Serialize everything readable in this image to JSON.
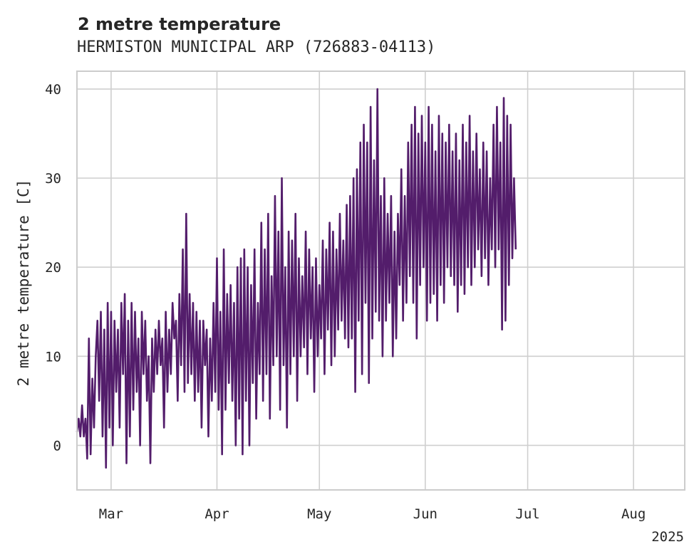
{
  "chart_data": {
    "type": "line",
    "title": "2 metre temperature",
    "subtitle": "HERMISTON MUNICIPAL ARP (726883-04113)",
    "xlabel": "",
    "ylabel": "2 metre temperature [C]",
    "x_range": [
      "2025-02-19",
      "2025-08-16"
    ],
    "ylim": [
      -5,
      42
    ],
    "y_ticks": [
      0,
      10,
      20,
      30,
      40
    ],
    "x_ticks": [
      {
        "date": "2025-03-01",
        "label": "Mar"
      },
      {
        "date": "2025-04-01",
        "label": "Apr"
      },
      {
        "date": "2025-05-01",
        "label": "May"
      },
      {
        "date": "2025-06-01",
        "label": "Jun"
      },
      {
        "date": "2025-07-01",
        "label": "Jul"
      },
      {
        "date": "2025-08-01",
        "label": "Aug"
      }
    ],
    "year_label": "2025",
    "grid": true,
    "series": [
      {
        "color": "#531d6b",
        "x_start": "2025-02-19T00:00",
        "step_hours": 12,
        "values": [
          1.5,
          3,
          1,
          4.5,
          1,
          3,
          -1.5,
          12,
          -1,
          7.5,
          2,
          10,
          14,
          5,
          15,
          1,
          13,
          -2.5,
          16,
          2,
          15,
          0,
          14,
          6,
          13,
          2,
          16,
          8,
          17,
          -2,
          14,
          1,
          16,
          4,
          15,
          6,
          12,
          0,
          15,
          8,
          14,
          5,
          10,
          -2,
          12,
          6,
          13,
          8,
          14,
          9,
          12,
          2,
          15,
          6,
          13,
          8,
          16,
          12,
          14,
          5,
          17,
          9,
          22,
          6,
          26,
          7,
          17,
          8,
          16,
          5,
          15,
          6,
          14,
          2,
          14,
          9,
          13,
          1,
          12,
          5,
          16,
          6,
          21,
          4,
          15,
          -1,
          22,
          4,
          17,
          7,
          18,
          5,
          16,
          0,
          20,
          3,
          21,
          -1,
          22,
          5,
          20,
          0,
          18,
          7,
          22,
          3,
          16,
          8,
          25,
          5,
          22,
          8,
          26,
          3,
          19,
          9,
          28,
          10,
          24,
          4,
          30,
          9,
          20,
          2,
          24,
          8,
          23,
          10,
          26,
          5,
          21,
          10,
          19,
          11,
          24,
          8,
          22,
          12,
          20,
          6,
          21,
          10,
          18,
          12,
          23,
          8,
          22,
          13,
          25,
          9,
          24,
          10,
          22,
          13,
          26,
          14,
          23,
          12,
          27,
          11,
          28,
          12,
          30,
          6,
          31,
          14,
          34,
          8,
          36,
          16,
          34,
          7,
          38,
          12,
          32,
          15,
          40,
          14,
          28,
          10,
          30,
          14,
          26,
          16,
          28,
          10,
          24,
          12,
          26,
          18,
          31,
          14,
          28,
          16,
          34,
          19,
          36,
          16,
          38,
          12,
          35,
          18,
          37,
          20,
          34,
          14,
          38,
          16,
          36,
          17,
          33,
          14,
          37,
          18,
          35,
          16,
          34,
          20,
          36,
          19,
          33,
          18,
          35,
          15,
          32,
          18,
          36,
          17,
          34,
          20,
          37,
          18,
          33,
          20,
          35,
          22,
          31,
          19,
          34,
          21,
          33,
          18,
          30,
          22,
          36,
          20,
          38,
          22,
          34,
          13,
          39,
          14,
          37,
          18,
          36,
          21,
          30,
          22
        ]
      }
    ]
  }
}
